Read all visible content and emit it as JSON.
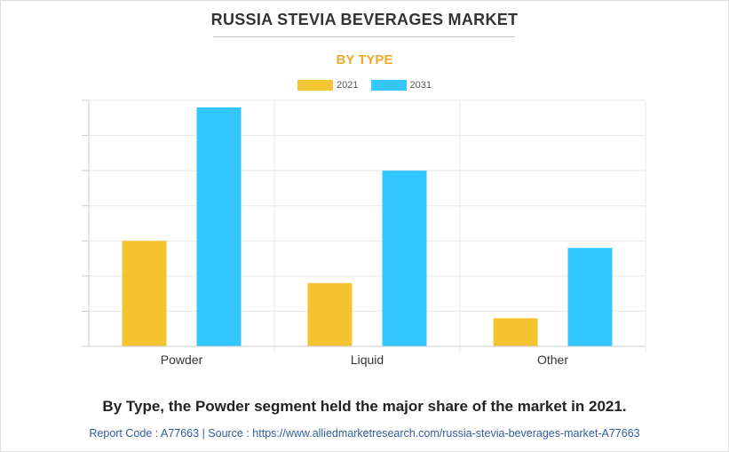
{
  "header": {
    "title": "RUSSIA STEVIA BEVERAGES MARKET",
    "subtitle": "BY TYPE"
  },
  "colors": {
    "subtitle": "#f0a82c",
    "series_2021": "#f4c430",
    "series_2031": "#33c6ff",
    "grid": "#e8e8e8",
    "axis": "#cccccc"
  },
  "chart_data": {
    "type": "bar",
    "categories": [
      "Powder",
      "Liquid",
      "Other"
    ],
    "series": [
      {
        "name": "2021",
        "values": [
          30,
          18,
          8
        ]
      },
      {
        "name": "2031",
        "values": [
          68,
          50,
          28
        ]
      }
    ],
    "ylim": [
      0,
      70
    ],
    "grid": true,
    "legend": "top-center",
    "title": "RUSSIA STEVIA BEVERAGES MARKET",
    "subtitle": "BY TYPE",
    "xlabel": "",
    "ylabel": ""
  },
  "footer": {
    "statement": "By Type, the Powder segment held the major share of the market in 2021.",
    "source": "Report Code : A77663 | Source : https://www.alliedmarketresearch.com/russia-stevia-beverages-market-A77663"
  }
}
